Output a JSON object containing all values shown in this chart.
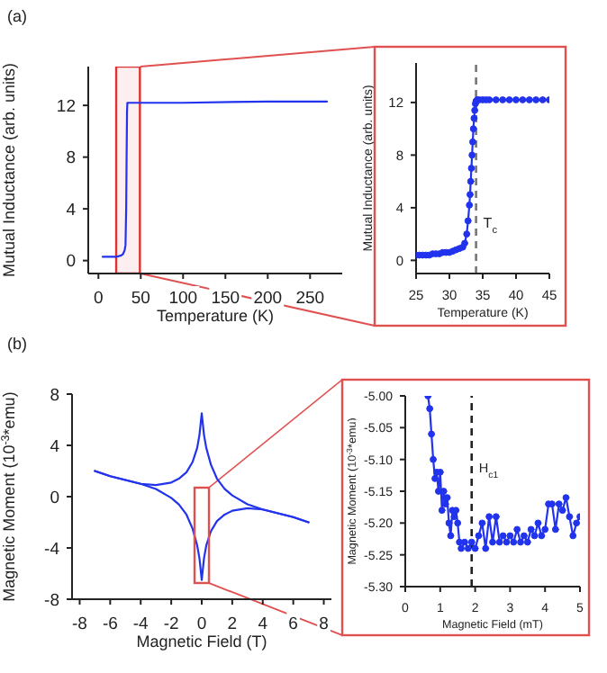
{
  "chart_data": [
    {
      "type": "line",
      "xlabel": "Temperature (K)",
      "ylabel": "Mutual Inductance (arb. units)",
      "annotations": [
        "(a)"
      ],
      "xlim": [
        -12,
        288
      ],
      "xticks": [
        0,
        50,
        100,
        150,
        200,
        250
      ],
      "ylim": [
        -1,
        15
      ],
      "yticks": [
        0,
        4,
        8,
        12
      ],
      "marker": "none",
      "series": [
        {
          "color": "#2233ee",
          "x": [
            5,
            15,
            22,
            27,
            29,
            31,
            32,
            32.8,
            33.3,
            33.8,
            34.2,
            40,
            100,
            200,
            270
          ],
          "values": [
            0.3,
            0.3,
            0.3,
            0.4,
            0.5,
            0.8,
            1.2,
            4,
            8,
            11.5,
            12.2,
            12.2,
            12.2,
            12.3,
            12.3
          ]
        }
      ],
      "bands": [
        {
          "axis": "x",
          "from": 21,
          "to": 49,
          "color": "#e03030"
        }
      ]
    },
    {
      "type": "line",
      "xlabel": "Temperature (K)",
      "ylabel": "Mutual Inductance (arb. units)",
      "xlim": [
        25,
        45
      ],
      "xticks": [
        25,
        30,
        35,
        40,
        45
      ],
      "ylim": [
        -1,
        15
      ],
      "yticks": [
        0,
        4,
        8,
        12
      ],
      "marker": "circle",
      "series": [
        {
          "color": "#2233ee",
          "x": [
            25,
            25.5,
            26,
            26.5,
            27,
            27.5,
            28,
            28.5,
            29,
            29.5,
            30,
            30.5,
            31,
            31.5,
            32,
            32.3,
            32.6,
            32.8,
            33,
            33.1,
            33.2,
            33.3,
            33.4,
            33.5,
            33.6,
            33.7,
            33.8,
            33.9,
            34,
            34.2,
            34.5,
            35,
            35.5,
            36,
            37,
            38,
            39,
            40,
            41,
            42,
            43,
            44,
            45
          ],
          "values": [
            0.4,
            0.4,
            0.4,
            0.4,
            0.4,
            0.5,
            0.5,
            0.5,
            0.6,
            0.6,
            0.6,
            0.7,
            0.8,
            0.9,
            1.0,
            1.3,
            2.0,
            3.0,
            4.2,
            5.0,
            6.0,
            7.0,
            8.0,
            9.0,
            10.0,
            10.8,
            11.4,
            11.9,
            12.1,
            12.2,
            12.2,
            12.2,
            12.2,
            12.2,
            12.2,
            12.2,
            12.2,
            12.2,
            12.2,
            12.2,
            12.2,
            12.2,
            12.2
          ]
        }
      ],
      "ref_lines": [
        {
          "axis": "x",
          "value": 34,
          "label": "T$_{c}$",
          "color": "#777777",
          "line_style": "dashed"
        }
      ]
    },
    {
      "type": "line",
      "xlabel": "Magnetic Field (T)",
      "ylabel": "Magnetic Moment (10$^{-3}$*emu)",
      "annotations": [
        "(b)"
      ],
      "xlim": [
        -8.5,
        8.5
      ],
      "xticks": [
        -8,
        -6,
        -4,
        -2,
        0,
        2,
        4,
        6,
        8
      ],
      "ylim": [
        -8,
        8
      ],
      "yticks": [
        -8,
        -4,
        0,
        4,
        8
      ],
      "marker": "none",
      "series": [
        {
          "color": "#2233ee",
          "x": [
            -7,
            -6,
            -5,
            -4,
            -3,
            -2,
            -1.5,
            -1,
            -0.6,
            -0.3,
            -0.15,
            0,
            0.15,
            0.3,
            0.6,
            1,
            1.5,
            2,
            3,
            4,
            5,
            6,
            7
          ],
          "values": [
            2,
            1.6,
            1.3,
            1.0,
            0.9,
            1.1,
            1.4,
            1.9,
            2.7,
            3.8,
            4.8,
            6.5,
            4.8,
            3.8,
            2.5,
            1.4,
            0.6,
            0.1,
            -0.6,
            -1.0,
            -1.3,
            -1.6,
            -2
          ]
        },
        {
          "color": "#2233ee",
          "x": [
            -7,
            -6,
            -5,
            -4,
            -3,
            -2,
            -1.5,
            -1,
            -0.6,
            -0.3,
            -0.15,
            0,
            0.15,
            0.3,
            0.6,
            1,
            1.5,
            2,
            3,
            4,
            5,
            6,
            7
          ],
          "values": [
            2,
            1.6,
            1.3,
            1.0,
            0.6,
            -0.1,
            -0.6,
            -1.4,
            -2.5,
            -3.8,
            -4.8,
            -6.5,
            -4.8,
            -3.8,
            -2.7,
            -1.9,
            -1.4,
            -1.1,
            -0.9,
            -1.0,
            -1.3,
            -1.6,
            -2
          ]
        }
      ]
    },
    {
      "type": "line",
      "xlabel": "Magnetic Field (mT)",
      "ylabel": "Magnetic Moment (10$^{-3}$*emu)",
      "xlim": [
        0,
        5
      ],
      "xticks": [
        0,
        1,
        2,
        3,
        4,
        5
      ],
      "ylim": [
        -5.3,
        -5
      ],
      "yticks": [
        {
          "value": -5.3,
          "label": "-5.30"
        },
        -5.25,
        {
          "value": -5.2,
          "label": "-5.20"
        },
        -5.15,
        {
          "value": -5.1,
          "label": "-5.10"
        },
        -5.05,
        {
          "value": -5,
          "label": "-5.00"
        }
      ],
      "marker": "circle",
      "series": [
        {
          "color": "#2233ee",
          "x": [
            0.65,
            0.7,
            0.75,
            0.8,
            0.85,
            0.9,
            0.95,
            1.0,
            1.05,
            1.1,
            1.15,
            1.2,
            1.25,
            1.3,
            1.35,
            1.4,
            1.45,
            1.5,
            1.55,
            1.6,
            1.7,
            1.8,
            1.9,
            2.0,
            2.1,
            2.2,
            2.3,
            2.4,
            2.5,
            2.6,
            2.7,
            2.8,
            2.9,
            3.0,
            3.1,
            3.2,
            3.3,
            3.4,
            3.5,
            3.6,
            3.7,
            3.8,
            3.9,
            4.0,
            4.1,
            4.2,
            4.3,
            4.4,
            4.5,
            4.6,
            4.7,
            4.8,
            4.9,
            5.0
          ],
          "values": [
            -5.0,
            -5.02,
            -5.06,
            -5.1,
            -5.13,
            -5.12,
            -5.15,
            -5.12,
            -5.18,
            -5.15,
            -5.17,
            -5.16,
            -5.2,
            -5.22,
            -5.18,
            -5.19,
            -5.18,
            -5.2,
            -5.23,
            -5.24,
            -5.23,
            -5.24,
            -5.23,
            -5.24,
            -5.22,
            -5.2,
            -5.24,
            -5.19,
            -5.23,
            -5.19,
            -5.23,
            -5.22,
            -5.23,
            -5.22,
            -5.23,
            -5.21,
            -5.23,
            -5.22,
            -5.23,
            -5.21,
            -5.22,
            -5.2,
            -5.22,
            -5.21,
            -5.17,
            -5.17,
            -5.21,
            -5.17,
            -5.18,
            -5.16,
            -5.19,
            -5.22,
            -5.2,
            -5.19
          ]
        }
      ],
      "ref_lines": [
        {
          "axis": "x",
          "value": 1.9,
          "label": "H$_{c1}$",
          "color": "#222222",
          "line_style": "dashed"
        }
      ]
    }
  ]
}
